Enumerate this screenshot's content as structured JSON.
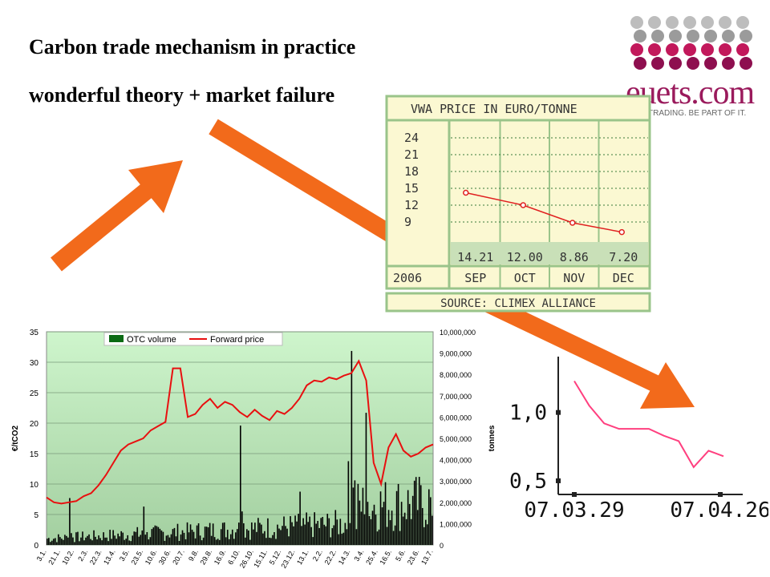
{
  "slide": {
    "title_line1": "Carbon trade mechanism in practice",
    "title_line2": "wonderful theory + market failure"
  },
  "logo": {
    "name": "euets.com",
    "tagline": "TRADING. BE PART OF IT.",
    "dot_colors": [
      "#bdbdbd",
      "#9b9b9b",
      "#c2185b",
      "#8e0f4f"
    ]
  },
  "arrow_color": "#f26a1b",
  "chart_data": [
    {
      "type": "line",
      "title": "VWA PRICE IN EURO/TONNE",
      "source": "SOURCE: CLIMEX ALLIANCE",
      "year_label": "2006",
      "categories": [
        "SEP",
        "OCT",
        "NOV",
        "DEC"
      ],
      "values": [
        14.21,
        12.0,
        8.86,
        7.2
      ],
      "value_labels": [
        "14.21",
        "12.00",
        "8.86",
        "7.20"
      ],
      "yticks": [
        "24",
        "21",
        "18",
        "15",
        "12",
        "9"
      ],
      "ylim": [
        6,
        26
      ],
      "colors": {
        "line": "#e02020",
        "panel": "#fbf8d2",
        "border": "#9ac48a",
        "value_cell": "#c9e0b8"
      }
    },
    {
      "type": "bar+line",
      "legend": [
        "OTC volume",
        "Forward price"
      ],
      "ylabel": "€/tCO2",
      "y2label": "tonnes",
      "ylim": [
        0,
        35
      ],
      "y2lim": [
        0,
        10000000
      ],
      "yticks": [
        "0",
        "5",
        "10",
        "15",
        "20",
        "25",
        "30",
        "35"
      ],
      "y2ticks": [
        "0",
        "1,000,000",
        "2,000,000",
        "3,000,000",
        "4,000,000",
        "5,000,000",
        "6,000,000",
        "7,000,000",
        "8,000,000",
        "9,000,000",
        "10,000,000"
      ],
      "xticks": [
        "3.1.",
        "21.1.",
        "10.2.",
        "2.3.",
        "22.3.",
        "13.4.",
        "3.5.",
        "23.5.",
        "10.6.",
        "30.6.",
        "20.7.",
        "9.8.",
        "29.8.",
        "16.9.",
        "6.10.",
        "26.10.",
        "15.11.",
        "5.12.",
        "23.12.",
        "13.1.",
        "2.2.",
        "22.2.",
        "14.3.",
        "3.4.",
        "25.4.",
        "16.5.",
        "5.6.",
        "23.6.",
        "13.7."
      ],
      "forward_price": [
        7.8,
        7,
        6.8,
        7,
        7.2,
        8,
        8.5,
        9.8,
        11.5,
        13.5,
        15.5,
        16.5,
        17,
        17.5,
        18.8,
        19.5,
        20.2,
        29,
        29,
        21,
        21.5,
        23,
        24,
        22.5,
        23.5,
        23,
        21.8,
        21,
        22.2,
        21.2,
        20.5,
        22,
        21.5,
        22.5,
        24,
        26.2,
        27,
        26.8,
        27.5,
        27.2,
        27.8,
        28.2,
        30.2,
        27,
        13.5,
        10,
        16,
        18.2,
        15.5,
        14.5,
        15,
        16,
        16.5
      ],
      "otc_volume_peak_events": [
        {
          "x_index": 3,
          "value": 2200000
        },
        {
          "x_index": 13,
          "value": 1800000
        },
        {
          "x_index": 26,
          "value": 5600000
        },
        {
          "x_index": 34,
          "value": 2500000
        },
        {
          "x_index": 41,
          "value": 9100000
        },
        {
          "x_index": 43,
          "value": 6200000
        },
        {
          "x_index": 52,
          "value": 3300000
        }
      ],
      "colors": {
        "price": "#e81010",
        "volume": "#000000",
        "bg_top": "#cef5cc",
        "bg_bottom": "#a3cfa0"
      }
    },
    {
      "type": "line",
      "xticks": [
        "07.03.29",
        "07.04.26"
      ],
      "yticks": [
        "1,0",
        "0,5"
      ],
      "x": [
        0,
        2,
        4,
        6,
        8,
        10,
        12,
        14,
        16,
        18,
        20
      ],
      "values": [
        1.23,
        1.05,
        0.92,
        0.88,
        0.88,
        0.88,
        0.83,
        0.79,
        0.6,
        0.72,
        0.68
      ],
      "ylim": [
        0.4,
        1.35
      ],
      "colors": {
        "line": "#ff3f7f",
        "axis": "#222222"
      }
    }
  ]
}
